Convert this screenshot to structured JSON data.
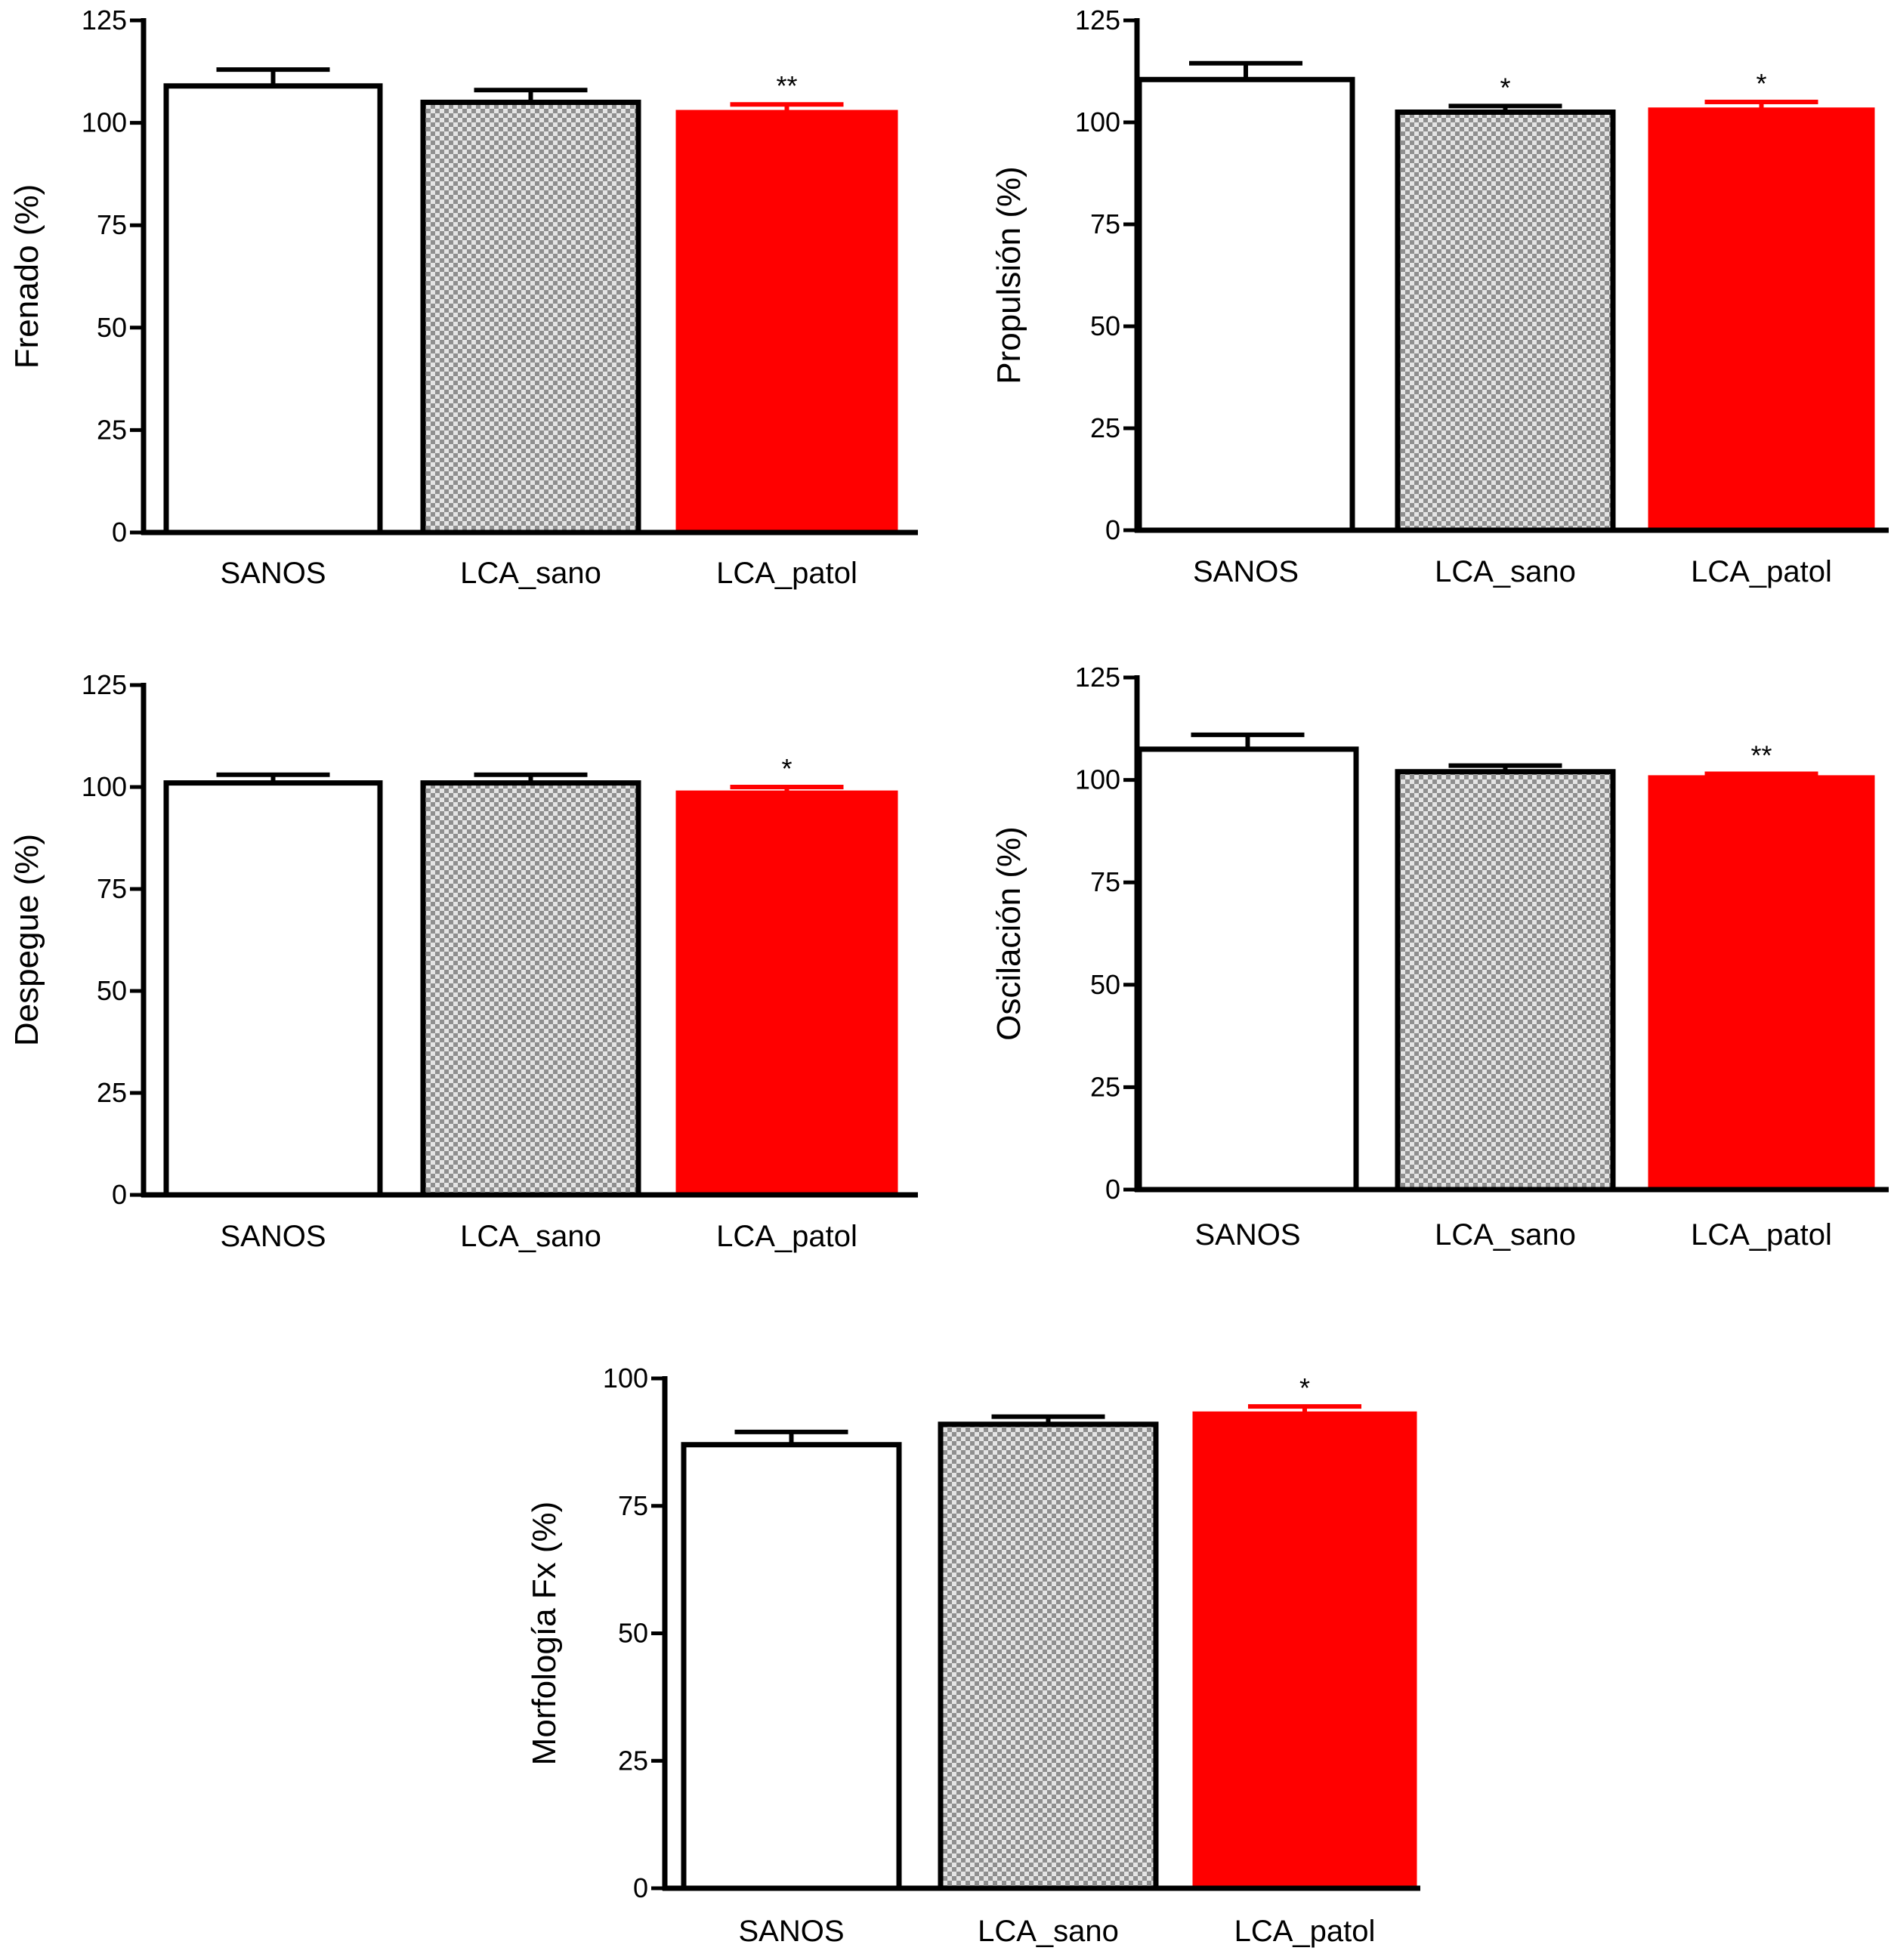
{
  "colors": {
    "sanos": "#ffffff",
    "lca_sano_light": "#e4e4e4",
    "lca_sano_dark": "#8f8f8f",
    "lca_patol": "#ff0000",
    "axis": "#000000"
  },
  "chart_data": [
    {
      "type": "bar",
      "title": "",
      "xlabel": "",
      "ylabel": "Frenado (%)",
      "ylim": [
        0,
        125
      ],
      "yticks": [
        0,
        25,
        50,
        75,
        100,
        125
      ],
      "categories": [
        "SANOS",
        "LCA_sano",
        "LCA_patol"
      ],
      "values": [
        109,
        105,
        102.5
      ],
      "errors": [
        4,
        3,
        2
      ],
      "significance": [
        "",
        "",
        "**"
      ],
      "fills": [
        "white",
        "checker",
        "red"
      ],
      "grid": false
    },
    {
      "type": "bar",
      "title": "",
      "xlabel": "",
      "ylabel": "Propulsión (%)",
      "ylim": [
        0,
        125
      ],
      "yticks": [
        0,
        25,
        50,
        75,
        100,
        125
      ],
      "categories": [
        "SANOS",
        "LCA_sano",
        "LCA_patol"
      ],
      "values": [
        110.5,
        102.5,
        103
      ],
      "errors": [
        4,
        1.5,
        2
      ],
      "significance": [
        "",
        "*",
        "*"
      ],
      "fills": [
        "white",
        "checker",
        "red"
      ],
      "grid": false
    },
    {
      "type": "bar",
      "title": "",
      "xlabel": "",
      "ylabel": "Despegue (%)",
      "ylim": [
        0,
        125
      ],
      "yticks": [
        0,
        25,
        50,
        75,
        100,
        125
      ],
      "categories": [
        "SANOS",
        "LCA_sano",
        "LCA_patol"
      ],
      "values": [
        101,
        101,
        98.5
      ],
      "errors": [
        2,
        2,
        1.5
      ],
      "significance": [
        "",
        "",
        "*"
      ],
      "fills": [
        "white",
        "checker",
        "red"
      ],
      "grid": false
    },
    {
      "type": "bar",
      "title": "",
      "xlabel": "",
      "ylabel": "Oscilación (%)",
      "ylim": [
        0,
        125
      ],
      "yticks": [
        0,
        25,
        50,
        75,
        100,
        125
      ],
      "categories": [
        "SANOS",
        "LCA_sano",
        "LCA_patol"
      ],
      "values": [
        107.5,
        102,
        100.5
      ],
      "errors": [
        3.5,
        1.5,
        1
      ],
      "significance": [
        "",
        "",
        "**"
      ],
      "fills": [
        "white",
        "checker",
        "red"
      ],
      "grid": false
    },
    {
      "type": "bar",
      "title": "",
      "xlabel": "",
      "ylabel": "Morfología Fx (%)",
      "ylim": [
        0,
        100
      ],
      "yticks": [
        0,
        25,
        50,
        75,
        100
      ],
      "categories": [
        "SANOS",
        "LCA_sano",
        "LCA_patol"
      ],
      "values": [
        87,
        91,
        93
      ],
      "errors": [
        2.5,
        1.5,
        1.5
      ],
      "significance": [
        "",
        "",
        "*"
      ],
      "fills": [
        "white",
        "checker",
        "red"
      ],
      "grid": false
    }
  ]
}
